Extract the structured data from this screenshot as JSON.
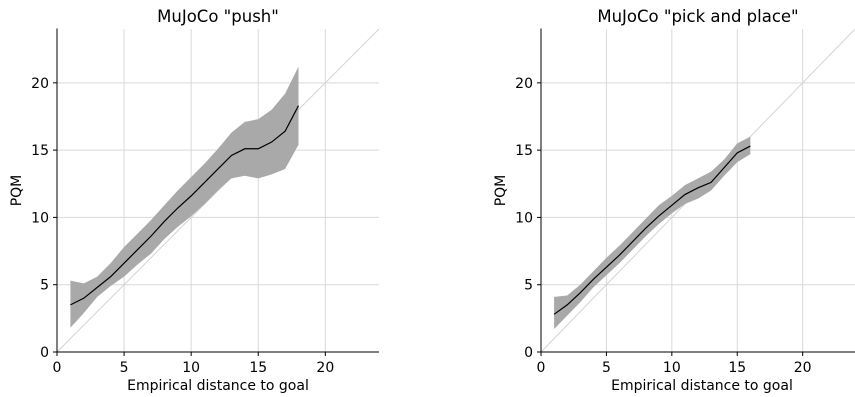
{
  "chart_data": [
    {
      "type": "line",
      "title": "MuJoCo \"push\"",
      "xlabel": "Empirical distance to goal",
      "ylabel": "PQM",
      "xlim": [
        0,
        24
      ],
      "ylim": [
        0,
        24
      ],
      "xticks": [
        0,
        5,
        10,
        15,
        20
      ],
      "yticks": [
        0,
        5,
        10,
        15,
        20
      ],
      "grid": true,
      "diagonal_reference": true,
      "colors": {
        "mean": "#000000",
        "band": "#a9a9a9",
        "grid": "#d9d9d9",
        "diagonal": "#d3d3d3"
      },
      "series": [
        {
          "x": [
            1,
            2,
            3,
            4,
            5,
            6,
            7,
            8,
            9,
            10,
            11,
            12,
            13,
            14,
            15,
            16,
            17,
            18
          ],
          "mean": [
            3.5,
            4.0,
            4.8,
            5.6,
            6.6,
            7.6,
            8.6,
            9.7,
            10.7,
            11.6,
            12.6,
            13.6,
            14.6,
            15.1,
            15.1,
            15.6,
            16.4,
            18.3
          ],
          "upper": [
            5.3,
            5.1,
            5.6,
            6.6,
            7.8,
            8.8,
            9.8,
            10.9,
            12.0,
            13.0,
            14.0,
            15.1,
            16.3,
            17.1,
            17.3,
            18.0,
            19.2,
            21.2
          ],
          "lower": [
            1.8,
            2.9,
            4.1,
            4.9,
            5.6,
            6.5,
            7.3,
            8.4,
            9.3,
            10.1,
            11.0,
            12.0,
            12.9,
            13.1,
            12.9,
            13.2,
            13.6,
            15.4
          ]
        }
      ]
    },
    {
      "type": "line",
      "title": "MuJoCo \"pick and place\"",
      "xlabel": "Empirical distance to goal",
      "ylabel": "PQM",
      "xlim": [
        0,
        24
      ],
      "ylim": [
        0,
        24
      ],
      "xticks": [
        0,
        5,
        10,
        15,
        20
      ],
      "yticks": [
        0,
        5,
        10,
        15,
        20
      ],
      "grid": true,
      "diagonal_reference": true,
      "colors": {
        "mean": "#000000",
        "band": "#a9a9a9",
        "grid": "#d9d9d9",
        "diagonal": "#d3d3d3"
      },
      "series": [
        {
          "x": [
            1,
            2,
            3,
            4,
            5,
            6,
            7,
            8,
            9,
            10,
            11,
            12,
            13,
            14,
            15,
            16
          ],
          "mean": [
            2.8,
            3.5,
            4.4,
            5.4,
            6.3,
            7.2,
            8.2,
            9.2,
            10.1,
            10.9,
            11.7,
            12.2,
            12.6,
            13.7,
            14.8,
            15.3
          ],
          "upper": [
            4.1,
            4.2,
            5.0,
            6.0,
            7.0,
            7.9,
            8.9,
            9.9,
            10.9,
            11.6,
            12.4,
            12.9,
            13.4,
            14.3,
            15.5,
            16.0
          ],
          "lower": [
            1.7,
            2.7,
            3.7,
            4.8,
            5.7,
            6.6,
            7.6,
            8.6,
            9.5,
            10.3,
            11.0,
            11.4,
            12.0,
            13.1,
            14.1,
            14.7
          ]
        }
      ]
    }
  ]
}
